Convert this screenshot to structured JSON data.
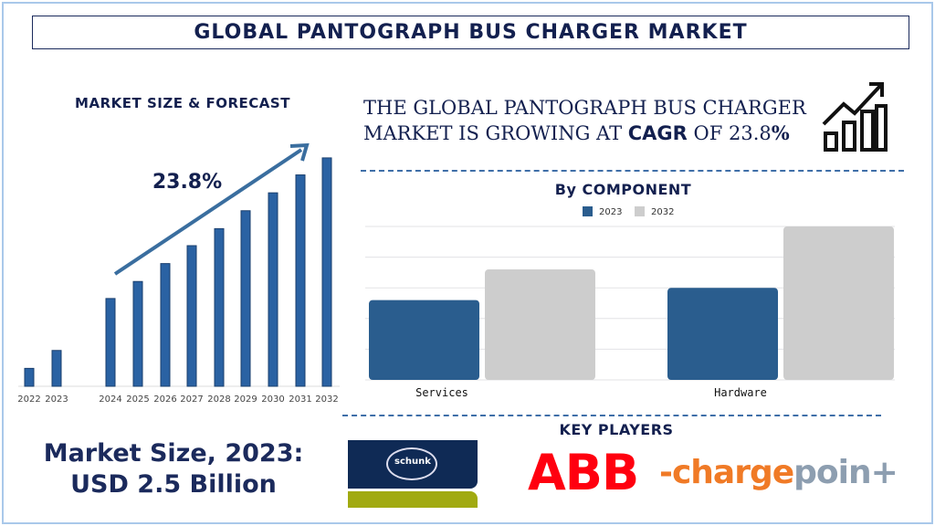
{
  "title": "GLOBAL PANTOGRAPH BUS CHARGER MARKET",
  "forecast_heading": "MARKET SIZE & FORECAST",
  "cagr_label": "23.8%",
  "headline": {
    "line1": "THE GLOBAL  PANTOGRAPH BUS CHARGER",
    "line2_pre": "MARKET IS GROWING AT ",
    "line2_bold": "CAGR",
    "line2_mid": " OF 23.8",
    "line2_pct": "%"
  },
  "component_heading": "By COMPONENT",
  "key_players_heading": "KEY PLAYERS",
  "market_size": {
    "line1": "Market Size, 2023:",
    "line2": "USD 2.5 Billion"
  },
  "players": {
    "schunk": "schunk",
    "abb": "ABB",
    "chargepoint_a": "-charge",
    "chargepoint_b": "poin+"
  },
  "colors": {
    "navy": "#13204f",
    "bar_blue": "#2a62a3",
    "series_2023": "#2a5d8e",
    "series_2032": "#cdcdcd"
  },
  "chart_data": [
    {
      "type": "bar",
      "title": "MARKET SIZE & FORECAST",
      "categories": [
        "2022",
        "2023",
        "2024",
        "2025",
        "2026",
        "2027",
        "2028",
        "2029",
        "2030",
        "2031",
        "2032"
      ],
      "values": [
        1,
        2,
        4.9,
        5.85,
        6.85,
        7.85,
        8.8,
        9.8,
        10.8,
        11.8,
        12.75
      ],
      "ylim": [
        0,
        13
      ],
      "annotation": "23.8%",
      "grid": false
    },
    {
      "type": "bar",
      "title": "By COMPONENT",
      "categories": [
        "Services",
        "Hardware"
      ],
      "series": [
        {
          "name": "2023",
          "values": [
            2.6,
            3.0
          ]
        },
        {
          "name": "2032",
          "values": [
            3.6,
            5.0
          ]
        }
      ],
      "ylim": [
        0,
        5
      ],
      "grid": true,
      "legend": "top-center"
    }
  ]
}
